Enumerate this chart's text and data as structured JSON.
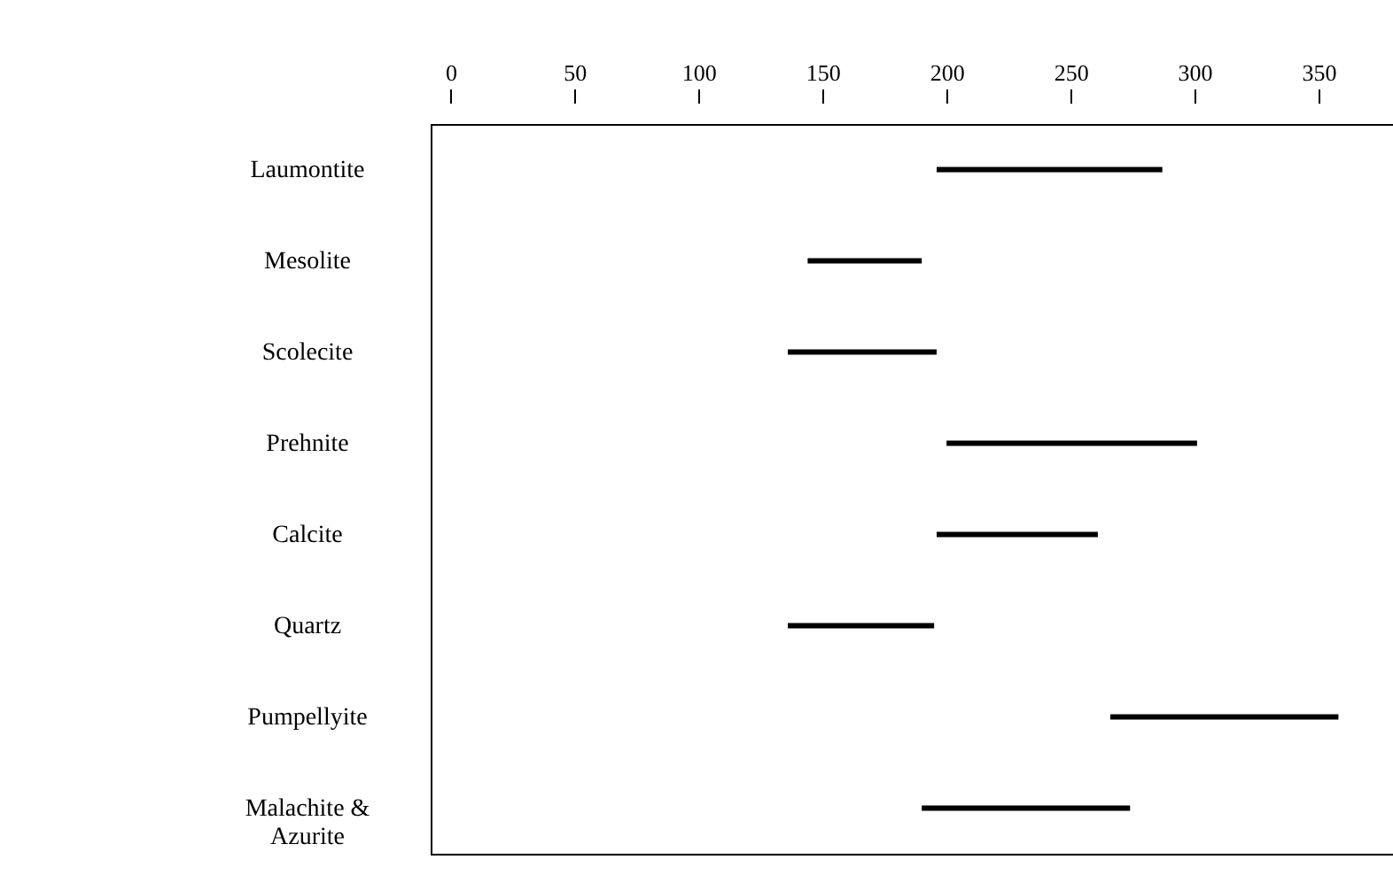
{
  "chart_data": {
    "type": "bar",
    "orientation": "horizontal",
    "categories": [
      "Laumontite",
      "Mesolite",
      "Scolecite",
      "Prehnite",
      "Calcite",
      "Quartz",
      "Pumpellyite",
      "Malachite & Azurite"
    ],
    "base": [
      196,
      144,
      136,
      200,
      196,
      136,
      266,
      190
    ],
    "values": [
      91,
      46,
      60,
      101,
      65,
      59,
      92,
      84
    ],
    "color": "#000000",
    "xlim": [
      -8,
      380
    ],
    "xticks": [
      0,
      50,
      100,
      150,
      200,
      250,
      300,
      350
    ]
  }
}
